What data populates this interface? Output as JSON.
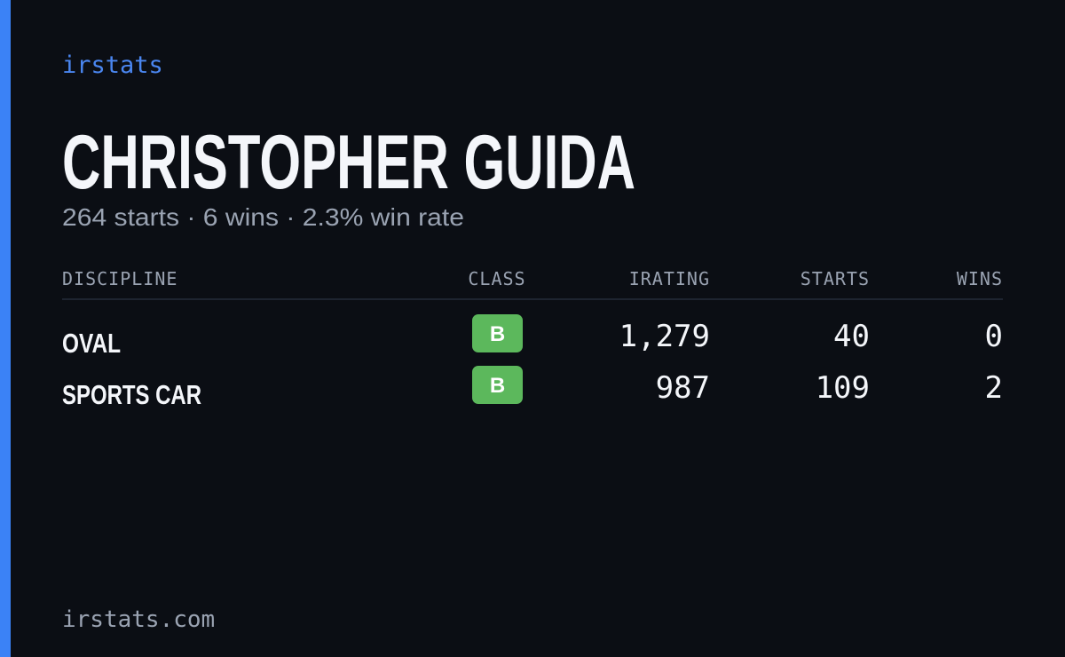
{
  "brand": "irstats",
  "title": "CHRISTOPHER GUIDA",
  "subtitle": "264 starts · 6 wins · 2.3% win rate",
  "table": {
    "headers": [
      "DISCIPLINE",
      "CLASS",
      "IRATING",
      "STARTS",
      "WINS"
    ],
    "rows": [
      [
        "OVAL",
        "B",
        "1,279",
        "40",
        "0"
      ],
      [
        "SPORTS CAR",
        "B",
        "987",
        "109",
        "2"
      ]
    ]
  },
  "footer": "irstats.com"
}
